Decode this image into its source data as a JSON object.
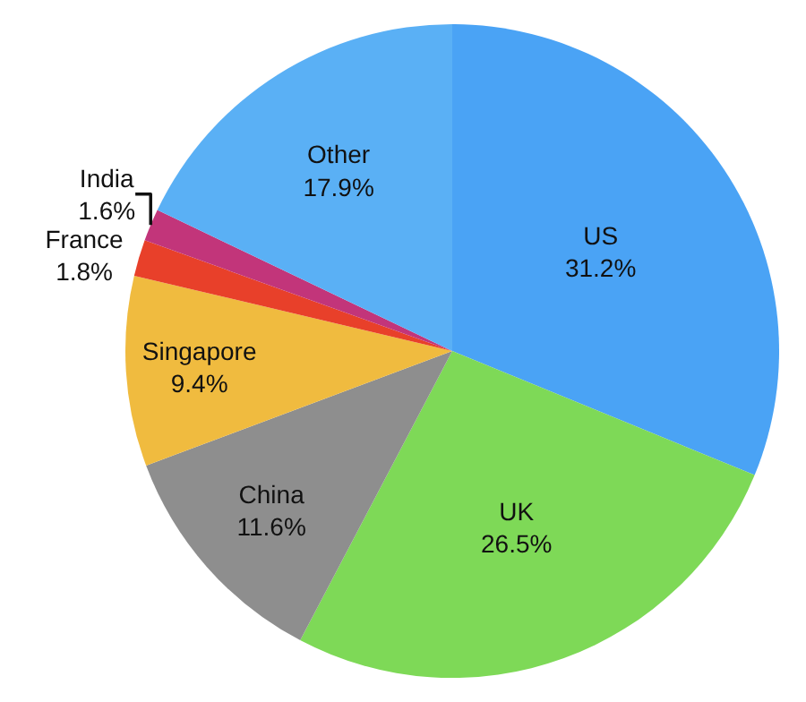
{
  "chart_data": {
    "type": "pie",
    "categories": [
      "US",
      "UK",
      "China",
      "Singapore",
      "France",
      "India",
      "Other"
    ],
    "values": [
      31.2,
      26.5,
      11.6,
      9.4,
      1.8,
      1.6,
      17.9
    ],
    "value_labels": [
      "31.2%",
      "26.5%",
      "11.6%",
      "9.4%",
      "1.8%",
      "1.6%",
      "17.9%"
    ],
    "colors": [
      "#4aa3f5",
      "#7ed957",
      "#8e8e8e",
      "#f0bb3f",
      "#e8402a",
      "#c2357a",
      "#5ab0f5"
    ],
    "legend": false
  }
}
